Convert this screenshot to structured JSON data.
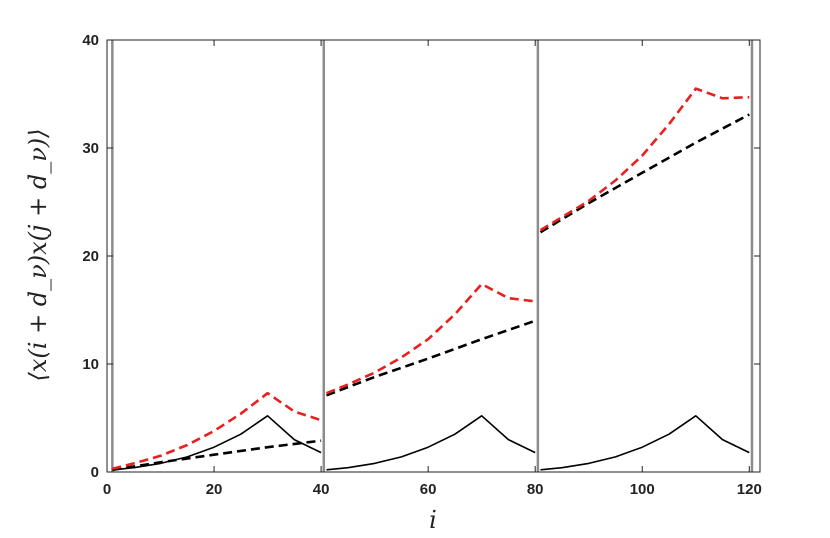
{
  "chart_data": {
    "type": "line",
    "xlabel": "i",
    "ylabel": "⟨x(i + d_ν)x(j + d_ν)⟩",
    "xlim": [
      0,
      122
    ],
    "ylim": [
      0,
      40
    ],
    "x_ticks": [
      0,
      20,
      40,
      60,
      80,
      100,
      120
    ],
    "y_ticks": [
      0,
      10,
      20,
      30,
      40
    ],
    "grid": false,
    "legend": "none",
    "block_boundaries": [
      1,
      40.5,
      80.5,
      120.5
    ],
    "series": [
      {
        "color": "#000000",
        "style": "solid",
        "segments": [
          {
            "x": [
              1,
              5,
              10,
              15,
              20,
              25,
              30,
              35,
              40
            ],
            "y": [
              0.2,
              0.4,
              0.8,
              1.4,
              2.3,
              3.5,
              5.2,
              3.0,
              1.8
            ]
          },
          {
            "x": [
              41,
              45,
              50,
              55,
              60,
              65,
              70,
              75,
              80
            ],
            "y": [
              0.2,
              0.4,
              0.8,
              1.4,
              2.3,
              3.5,
              5.2,
              3.0,
              1.8
            ]
          },
          {
            "x": [
              81,
              85,
              90,
              95,
              100,
              105,
              110,
              115,
              120
            ],
            "y": [
              0.2,
              0.4,
              0.8,
              1.4,
              2.3,
              3.5,
              5.2,
              3.0,
              1.8
            ]
          }
        ]
      },
      {
        "color": "#000000",
        "style": "dashed",
        "segments": [
          {
            "x": [
              1,
              10,
              20,
              30,
              40
            ],
            "y": [
              0.2,
              0.9,
              1.6,
              2.3,
              2.9
            ]
          },
          {
            "x": [
              41,
              50,
              60,
              70,
              80
            ],
            "y": [
              7.1,
              8.8,
              10.5,
              12.3,
              14.0
            ]
          },
          {
            "x": [
              81,
              90,
              100,
              110,
              120
            ],
            "y": [
              22.2,
              24.9,
              27.7,
              30.5,
              33.1
            ]
          }
        ]
      },
      {
        "color": "#e8201f",
        "style": "dashed",
        "segments": [
          {
            "x": [
              1,
              5,
              10,
              15,
              20,
              25,
              30,
              35,
              40
            ],
            "y": [
              0.3,
              0.8,
              1.5,
              2.5,
              3.8,
              5.4,
              7.3,
              5.6,
              4.8
            ]
          },
          {
            "x": [
              41,
              45,
              50,
              55,
              60,
              65,
              70,
              75,
              80
            ],
            "y": [
              7.3,
              8.1,
              9.2,
              10.6,
              12.3,
              14.6,
              17.4,
              16.1,
              15.8
            ]
          },
          {
            "x": [
              81,
              85,
              90,
              95,
              100,
              105,
              110,
              115,
              120
            ],
            "y": [
              22.4,
              23.6,
              25.1,
              27.0,
              29.3,
              32.2,
              35.5,
              34.6,
              34.7
            ]
          }
        ]
      }
    ]
  }
}
